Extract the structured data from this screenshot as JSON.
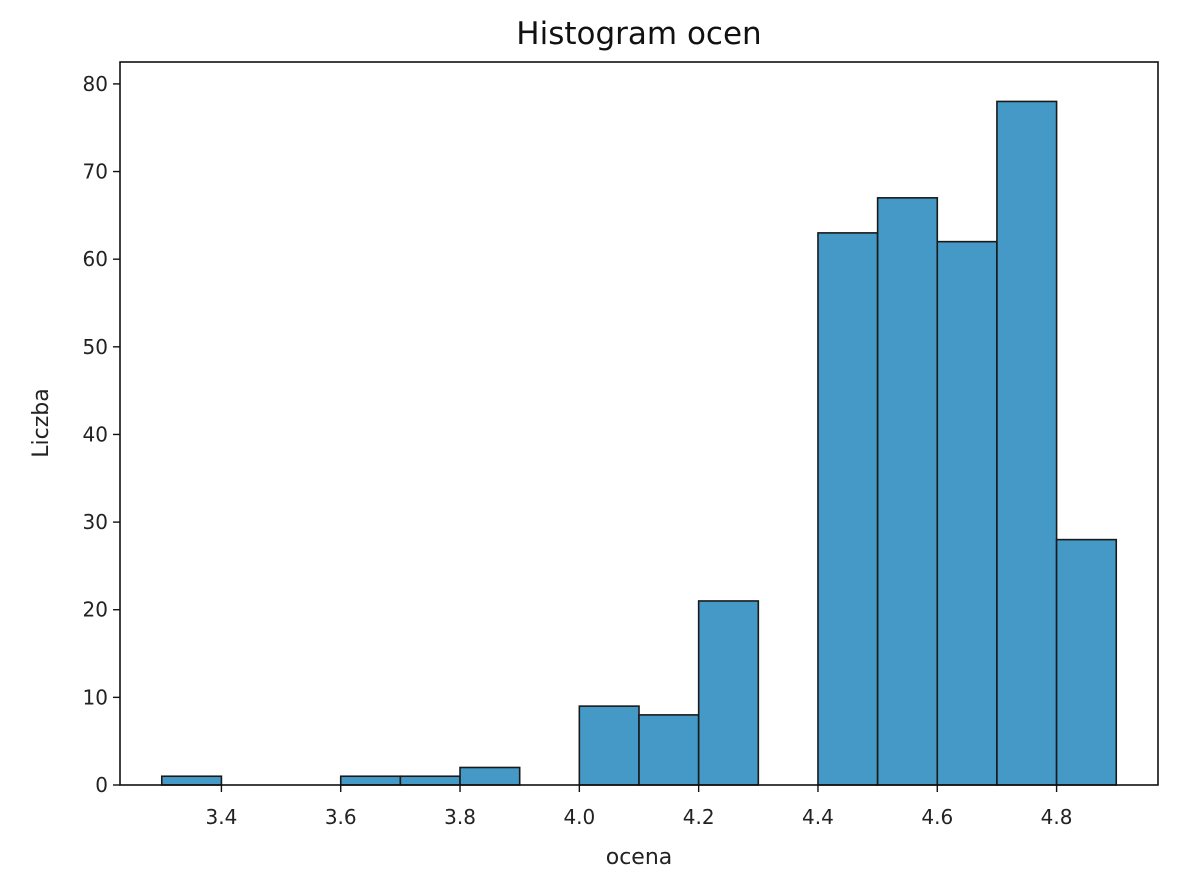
{
  "chart_data": {
    "type": "bar",
    "title": "Histogram ocen",
    "xlabel": "ocena",
    "ylabel": "Liczba",
    "xlim": [
      3.23,
      4.97
    ],
    "ylim": [
      0,
      82.5
    ],
    "bin_width": 0.1,
    "bins": [
      {
        "x0": 3.3,
        "x1": 3.4,
        "count": 1
      },
      {
        "x0": 3.4,
        "x1": 3.5,
        "count": 0
      },
      {
        "x0": 3.5,
        "x1": 3.6,
        "count": 0
      },
      {
        "x0": 3.6,
        "x1": 3.7,
        "count": 1
      },
      {
        "x0": 3.7,
        "x1": 3.8,
        "count": 1
      },
      {
        "x0": 3.8,
        "x1": 3.9,
        "count": 2
      },
      {
        "x0": 3.9,
        "x1": 4.0,
        "count": 0
      },
      {
        "x0": 4.0,
        "x1": 4.1,
        "count": 9
      },
      {
        "x0": 4.1,
        "x1": 4.2,
        "count": 8
      },
      {
        "x0": 4.2,
        "x1": 4.3,
        "count": 21
      },
      {
        "x0": 4.3,
        "x1": 4.4,
        "count": 0
      },
      {
        "x0": 4.4,
        "x1": 4.5,
        "count": 63
      },
      {
        "x0": 4.5,
        "x1": 4.6,
        "count": 67
      },
      {
        "x0": 4.6,
        "x1": 4.7,
        "count": 62
      },
      {
        "x0": 4.7,
        "x1": 4.8,
        "count": 78
      },
      {
        "x0": 4.8,
        "x1": 4.9,
        "count": 28
      }
    ],
    "xticks": [
      3.4,
      3.6,
      3.8,
      4.0,
      4.2,
      4.4,
      4.6,
      4.8
    ],
    "xtick_labels": [
      "3.4",
      "3.6",
      "3.8",
      "4.0",
      "4.2",
      "4.4",
      "4.6",
      "4.8"
    ],
    "yticks": [
      0,
      10,
      20,
      30,
      40,
      50,
      60,
      70,
      80
    ],
    "ytick_labels": [
      "0",
      "10",
      "20",
      "30",
      "40",
      "50",
      "60",
      "70",
      "80"
    ],
    "grid": false,
    "legend": null,
    "colors": {
      "bar_fill": "#4499c6",
      "bar_edge": "#1a1a1a",
      "axis": "#111111"
    }
  }
}
